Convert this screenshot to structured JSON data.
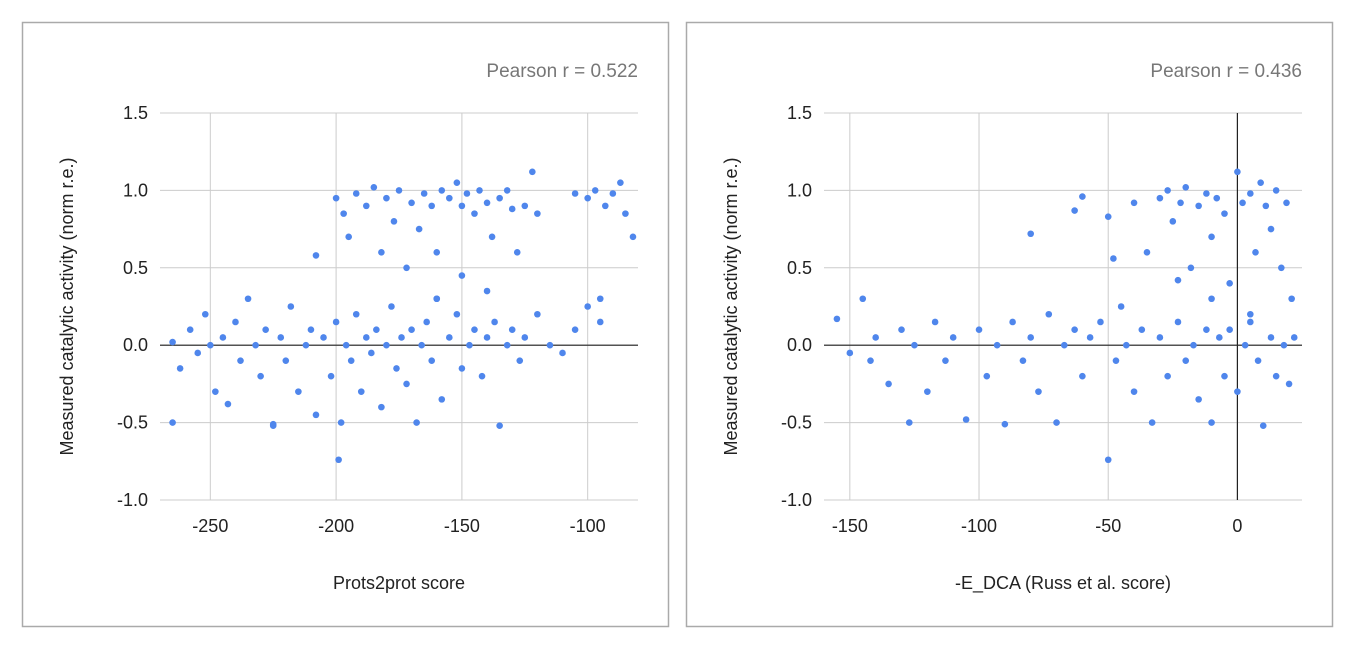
{
  "chart_data": [
    {
      "type": "scatter",
      "annotation": "Pearson r = 0.522",
      "x_label": "Prots2prot score",
      "y_label": "Measured catalytic activity (norm r.e.)",
      "color": "#4f86ec",
      "xlim": [
        -270,
        -80
      ],
      "ylim": [
        -1.0,
        1.5
      ],
      "xticks": [
        -250,
        -200,
        -150,
        -100
      ],
      "yticks": [
        {
          "value": 1.5,
          "label": "1.5"
        },
        {
          "value": 1.0,
          "label": "1.0"
        },
        {
          "value": 0.5,
          "label": "0.5"
        },
        {
          "value": 0.0,
          "label": "0.0"
        },
        {
          "value": -0.5,
          "label": "-0.5"
        },
        {
          "value": -1.0,
          "label": "-1.0"
        }
      ],
      "grid": true,
      "x": [
        -265,
        -262,
        -258,
        -255,
        -252,
        -250,
        -248,
        -245,
        -243,
        -240,
        -238,
        -235,
        -232,
        -230,
        -228,
        -225,
        -222,
        -220,
        -218,
        -215,
        -212,
        -210,
        -208,
        -205,
        -202,
        -200,
        -198,
        -196,
        -194,
        -192,
        -190,
        -188,
        -186,
        -184,
        -182,
        -180,
        -178,
        -176,
        -174,
        -172,
        -170,
        -168,
        -166,
        -164,
        -162,
        -160,
        -158,
        -155,
        -152,
        -150,
        -147,
        -145,
        -142,
        -140,
        -137,
        -135,
        -132,
        -130,
        -127,
        -125,
        -120,
        -115,
        -110,
        -105,
        -100,
        -95,
        -199,
        -265,
        -225,
        -200,
        -197,
        -195,
        -192,
        -188,
        -185,
        -182,
        -180,
        -177,
        -175,
        -172,
        -170,
        -167,
        -165,
        -162,
        -160,
        -158,
        -155,
        -152,
        -150,
        -148,
        -145,
        -143,
        -140,
        -138,
        -135,
        -132,
        -130,
        -128,
        -125,
        -122,
        -120,
        -105,
        -100,
        -97,
        -93,
        -90,
        -87,
        -85,
        -82,
        -208,
        -160,
        -150,
        -140,
        -95
      ],
      "values": [
        0.02,
        -0.15,
        0.1,
        -0.05,
        0.2,
        0.0,
        -0.3,
        0.05,
        -0.38,
        0.15,
        -0.1,
        0.3,
        0.0,
        -0.2,
        0.1,
        -0.52,
        0.05,
        -0.1,
        0.25,
        -0.3,
        0.0,
        0.1,
        -0.45,
        0.05,
        -0.2,
        0.15,
        -0.5,
        0.0,
        -0.1,
        0.2,
        -0.3,
        0.05,
        -0.05,
        0.1,
        -0.4,
        0.0,
        0.25,
        -0.15,
        0.05,
        -0.25,
        0.1,
        -0.5,
        0.0,
        0.15,
        -0.1,
        0.3,
        -0.35,
        0.05,
        0.2,
        -0.15,
        0.0,
        0.1,
        -0.2,
        0.05,
        0.15,
        -0.52,
        0.0,
        0.1,
        -0.1,
        0.05,
        0.2,
        0.0,
        -0.05,
        0.1,
        0.25,
        0.15,
        -0.74,
        -0.5,
        -0.51,
        0.95,
        0.85,
        0.7,
        0.98,
        0.9,
        1.02,
        0.6,
        0.95,
        0.8,
        1.0,
        0.5,
        0.92,
        0.75,
        0.98,
        0.9,
        0.6,
        1.0,
        0.95,
        1.05,
        0.9,
        0.98,
        0.85,
        1.0,
        0.92,
        0.7,
        0.95,
        1.0,
        0.88,
        0.6,
        0.9,
        1.12,
        0.85,
        0.98,
        0.95,
        1.0,
        0.9,
        0.98,
        1.05,
        0.85,
        0.7,
        0.58,
        0.3,
        0.45,
        0.35,
        0.3
      ]
    },
    {
      "type": "scatter",
      "annotation": "Pearson r = 0.436",
      "x_label": "-E_DCA (Russ et al. score)",
      "y_label": "Measured catalytic activity (norm r.e.)",
      "color": "#4f86ec",
      "xlim": [
        -160,
        25
      ],
      "ylim": [
        -1.0,
        1.5
      ],
      "xticks": [
        -150,
        -100,
        -50,
        0
      ],
      "yticks": [
        {
          "value": 1.5,
          "label": "1.5"
        },
        {
          "value": 1.0,
          "label": "1.0"
        },
        {
          "value": 0.5,
          "label": "0.5"
        },
        {
          "value": 0.0,
          "label": "0.0"
        },
        {
          "value": -0.5,
          "label": "-0.5"
        },
        {
          "value": -1.0,
          "label": "-1.0"
        }
      ],
      "grid": true,
      "x": [
        -155,
        -150,
        -145,
        -142,
        -140,
        -135,
        -130,
        -127,
        -125,
        -120,
        -117,
        -113,
        -110,
        -105,
        -100,
        -97,
        -93,
        -90,
        -87,
        -83,
        -80,
        -77,
        -73,
        -70,
        -67,
        -63,
        -60,
        -57,
        -53,
        -50,
        -47,
        -43,
        -40,
        -37,
        -33,
        -30,
        -27,
        -23,
        -20,
        -17,
        -15,
        -12,
        -10,
        -7,
        -5,
        -3,
        0,
        3,
        5,
        8,
        10,
        13,
        15,
        18,
        20,
        22,
        -80,
        -60,
        -63,
        -50,
        -48,
        -40,
        -35,
        -30,
        -27,
        -25,
        -22,
        -20,
        -18,
        -15,
        -12,
        -10,
        -8,
        -5,
        -3,
        0,
        2,
        5,
        7,
        9,
        11,
        13,
        15,
        17,
        19,
        21,
        -10,
        5,
        -45,
        -23
      ],
      "values": [
        0.17,
        -0.05,
        0.3,
        -0.1,
        0.05,
        -0.25,
        0.1,
        -0.5,
        0.0,
        -0.3,
        0.15,
        -0.1,
        0.05,
        -0.48,
        0.1,
        -0.2,
        0.0,
        -0.51,
        0.15,
        -0.1,
        0.05,
        -0.3,
        0.2,
        -0.5,
        0.0,
        0.1,
        -0.2,
        0.05,
        0.15,
        -0.74,
        -0.1,
        0.0,
        -0.3,
        0.1,
        -0.5,
        0.05,
        -0.2,
        0.15,
        -0.1,
        0.0,
        -0.35,
        0.1,
        -0.5,
        0.05,
        -0.2,
        0.1,
        -0.3,
        0.0,
        0.15,
        -0.1,
        -0.52,
        0.05,
        -0.2,
        0.0,
        -0.25,
        0.05,
        0.72,
        0.96,
        0.87,
        0.83,
        0.56,
        0.92,
        0.6,
        0.95,
        1.0,
        0.8,
        0.92,
        1.02,
        0.5,
        0.9,
        0.98,
        0.7,
        0.95,
        0.85,
        0.4,
        1.12,
        0.92,
        0.98,
        0.6,
        1.05,
        0.9,
        0.75,
        1.0,
        0.5,
        0.92,
        0.3,
        0.3,
        0.2,
        0.25,
        0.42
      ]
    }
  ]
}
